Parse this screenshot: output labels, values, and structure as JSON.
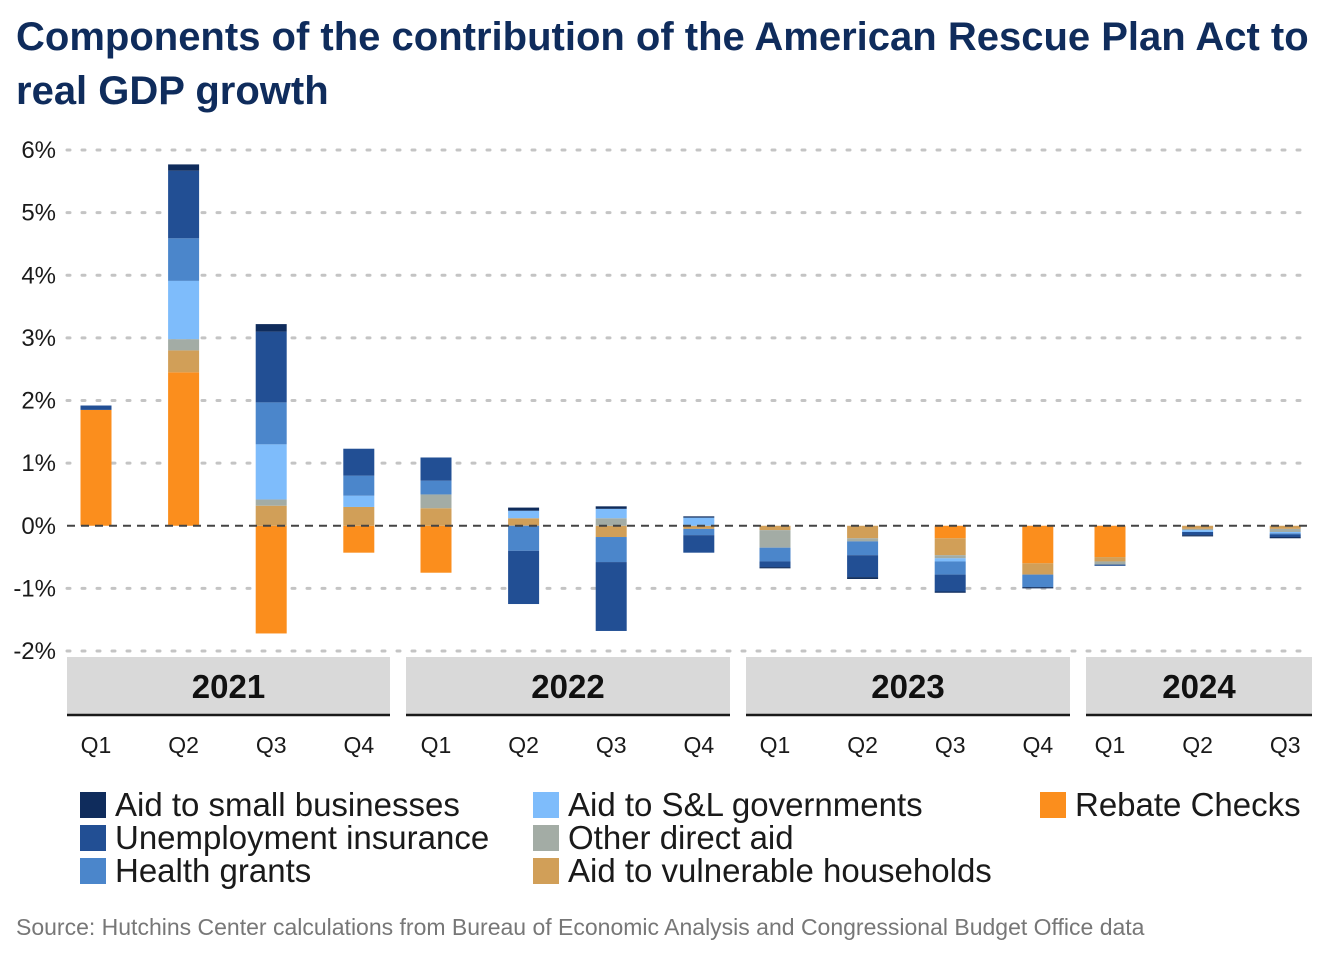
{
  "title": "Components of the contribution of the American Rescue Plan Act to real GDP growth",
  "source": "Source: Hutchins Center calculations from Bureau of Economic Analysis and Congressional Budget Office data",
  "chart_data": {
    "type": "bar",
    "stacked": true,
    "title": "Components of the contribution of the American Rescue Plan Act to real GDP growth",
    "xlabel": "",
    "ylabel": "",
    "ylim": [
      -2,
      6
    ],
    "y_ticks": [
      6,
      5,
      4,
      3,
      2,
      1,
      0,
      -1,
      -2
    ],
    "y_tick_labels": [
      "6%",
      "5%",
      "4%",
      "3%",
      "2%",
      "1%",
      "0%",
      "-1%",
      "-2%"
    ],
    "grid": "horizontal dotted",
    "legend_position": "bottom",
    "years": [
      {
        "label": "2021",
        "quarters": 4
      },
      {
        "label": "2022",
        "quarters": 4
      },
      {
        "label": "2023",
        "quarters": 4
      },
      {
        "label": "2024",
        "quarters": 3
      }
    ],
    "categories": [
      "Q1",
      "Q2",
      "Q3",
      "Q4",
      "Q1",
      "Q2",
      "Q3",
      "Q4",
      "Q1",
      "Q2",
      "Q3",
      "Q4",
      "Q1",
      "Q2",
      "Q3"
    ],
    "series": [
      {
        "name": "Rebate Checks",
        "color": "#fb8e1d",
        "values": [
          1.85,
          2.45,
          -1.72,
          -0.43,
          -0.75,
          0.0,
          0.0,
          0.0,
          0.0,
          0.0,
          -0.2,
          -0.6,
          -0.5,
          0.0,
          0.0
        ]
      },
      {
        "name": "Aid to vulnerable households",
        "color": "#d19f58",
        "values": [
          0.0,
          0.35,
          0.32,
          0.3,
          0.28,
          0.12,
          -0.18,
          -0.05,
          -0.07,
          -0.2,
          -0.27,
          -0.18,
          -0.07,
          -0.05,
          -0.05
        ]
      },
      {
        "name": "Other direct aid",
        "color": "#a3aca5",
        "values": [
          0.0,
          0.18,
          0.1,
          0.0,
          0.22,
          0.0,
          0.12,
          0.0,
          -0.28,
          -0.05,
          -0.05,
          0.0,
          -0.05,
          -0.02,
          -0.05
        ]
      },
      {
        "name": "Aid to S&L governments",
        "color": "#7ebcfb",
        "values": [
          0.0,
          0.93,
          0.88,
          0.18,
          0.0,
          0.12,
          0.15,
          0.13,
          0.0,
          0.0,
          -0.05,
          0.0,
          0.0,
          -0.03,
          -0.02
        ]
      },
      {
        "name": "Health grants",
        "color": "#4b86cb",
        "values": [
          0.0,
          0.68,
          0.67,
          0.32,
          0.22,
          -0.4,
          -0.4,
          -0.1,
          -0.22,
          -0.22,
          -0.21,
          -0.2,
          0.0,
          0.0,
          -0.02
        ]
      },
      {
        "name": "Unemployment insurance",
        "color": "#224f94",
        "values": [
          0.07,
          1.08,
          1.13,
          0.43,
          0.37,
          -0.85,
          -1.1,
          -0.28,
          -0.09,
          -0.35,
          -0.27,
          0.0,
          -0.02,
          -0.05,
          -0.04
        ]
      },
      {
        "name": "Aid to small businesses",
        "color": "#0f2c5c",
        "values": [
          0.0,
          0.1,
          0.12,
          0.0,
          0.0,
          0.05,
          0.04,
          0.02,
          -0.02,
          -0.03,
          -0.02,
          -0.02,
          0.0,
          -0.02,
          -0.02
        ]
      }
    ]
  },
  "legend": {
    "items": [
      {
        "name": "Aid to small businesses",
        "color": "#0f2c5c"
      },
      {
        "name": "Unemployment insurance",
        "color": "#224f94"
      },
      {
        "name": "Health grants",
        "color": "#4b86cb"
      },
      {
        "name": "Aid to S&L governments",
        "color": "#7ebcfb"
      },
      {
        "name": "Other direct aid",
        "color": "#a3aca5"
      },
      {
        "name": "Aid to vulnerable households",
        "color": "#d19f58"
      },
      {
        "name": "Rebate Checks",
        "color": "#fb8e1d"
      }
    ]
  }
}
